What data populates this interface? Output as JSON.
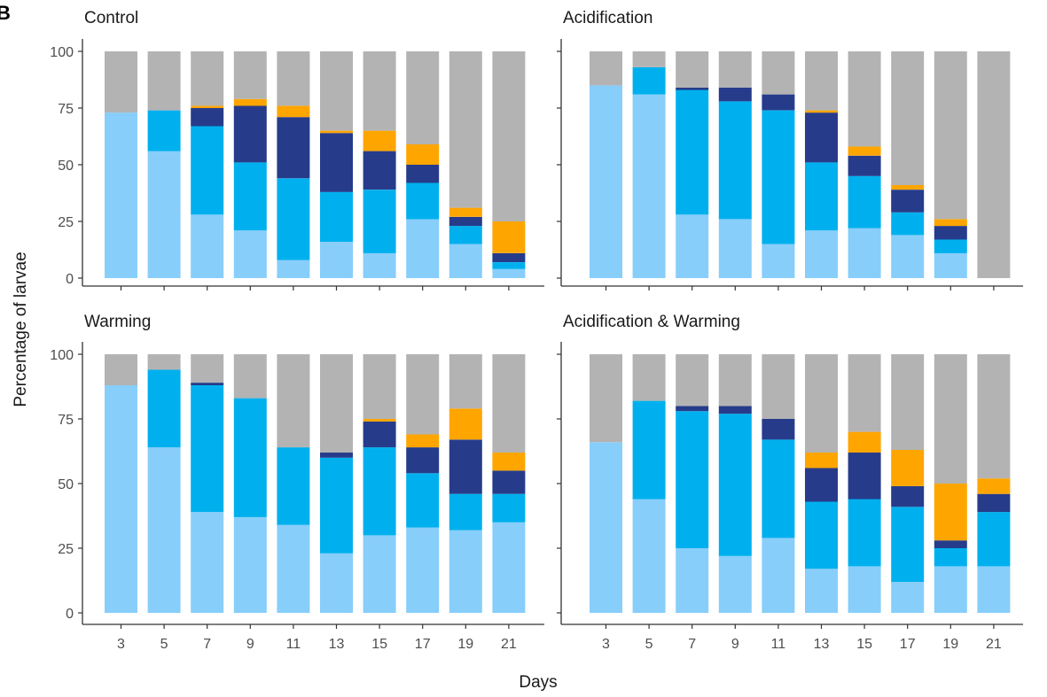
{
  "figure_tag": "B",
  "colors": {
    "stage1": "#87CEFA",
    "stage2": "#00B0EE",
    "stage3": "#263C8B",
    "stage4": "#FFA500",
    "dead": "#B3B3B3"
  },
  "chart_data": [
    {
      "type": "bar",
      "stacked": true,
      "title": "Control",
      "x": [
        3,
        5,
        7,
        9,
        11,
        13,
        15,
        17,
        19,
        21
      ],
      "ylim": [
        0,
        100
      ],
      "yticks": [
        0,
        25,
        50,
        75,
        100
      ],
      "xlabel": "Days",
      "ylabel": "Percentage of larvae",
      "series": [
        {
          "color": "#87CEFA",
          "values": [
            73,
            56,
            28,
            21,
            8,
            16,
            11,
            26,
            15,
            4
          ]
        },
        {
          "color": "#00B0EE",
          "values": [
            0,
            18,
            39,
            30,
            36,
            22,
            28,
            16,
            8,
            3
          ]
        },
        {
          "color": "#263C8B",
          "values": [
            0,
            0,
            8,
            25,
            27,
            26,
            17,
            8,
            4,
            4
          ]
        },
        {
          "color": "#FFA500",
          "values": [
            0,
            0,
            1,
            3,
            5,
            1,
            9,
            9,
            4,
            14
          ]
        },
        {
          "color": "#B3B3B3",
          "values": [
            27,
            26,
            24,
            21,
            24,
            35,
            35,
            41,
            69,
            75
          ]
        }
      ]
    },
    {
      "type": "bar",
      "stacked": true,
      "title": "Acidification",
      "x": [
        3,
        5,
        7,
        9,
        11,
        13,
        15,
        17,
        19,
        21
      ],
      "ylim": [
        0,
        100
      ],
      "yticks": [
        0,
        25,
        50,
        75,
        100
      ],
      "xlabel": "Days",
      "ylabel": "Percentage of larvae",
      "series": [
        {
          "color": "#87CEFA",
          "values": [
            85,
            81,
            28,
            26,
            15,
            21,
            22,
            19,
            11,
            0
          ]
        },
        {
          "color": "#00B0EE",
          "values": [
            0,
            12,
            55,
            52,
            59,
            30,
            23,
            10,
            6,
            0
          ]
        },
        {
          "color": "#263C8B",
          "values": [
            0,
            0,
            1,
            6,
            7,
            22,
            9,
            10,
            6,
            0
          ]
        },
        {
          "color": "#FFA500",
          "values": [
            0,
            0,
            0,
            0,
            0,
            1,
            4,
            2,
            3,
            0
          ]
        },
        {
          "color": "#B3B3B3",
          "values": [
            15,
            7,
            16,
            16,
            19,
            26,
            42,
            59,
            74,
            100
          ]
        }
      ]
    },
    {
      "type": "bar",
      "stacked": true,
      "title": "Warming",
      "x": [
        3,
        5,
        7,
        9,
        11,
        13,
        15,
        17,
        19,
        21
      ],
      "ylim": [
        0,
        100
      ],
      "yticks": [
        0,
        25,
        50,
        75,
        100
      ],
      "xlabel": "Days",
      "ylabel": "Percentage of larvae",
      "series": [
        {
          "color": "#87CEFA",
          "values": [
            88,
            64,
            39,
            37,
            34,
            23,
            30,
            33,
            32,
            35
          ]
        },
        {
          "color": "#00B0EE",
          "values": [
            0,
            30,
            49,
            46,
            30,
            37,
            34,
            21,
            14,
            11
          ]
        },
        {
          "color": "#263C8B",
          "values": [
            0,
            0,
            1,
            0,
            0,
            2,
            10,
            10,
            21,
            9
          ]
        },
        {
          "color": "#FFA500",
          "values": [
            0,
            0,
            0,
            0,
            0,
            0,
            1,
            5,
            12,
            7
          ]
        },
        {
          "color": "#B3B3B3",
          "values": [
            12,
            6,
            11,
            17,
            36,
            38,
            25,
            31,
            21,
            38
          ]
        }
      ]
    },
    {
      "type": "bar",
      "stacked": true,
      "title": "Acidification & Warming",
      "x": [
        3,
        5,
        7,
        9,
        11,
        13,
        15,
        17,
        19,
        21
      ],
      "ylim": [
        0,
        100
      ],
      "yticks": [
        0,
        25,
        50,
        75,
        100
      ],
      "xlabel": "Days",
      "ylabel": "Percentage of larvae",
      "series": [
        {
          "color": "#87CEFA",
          "values": [
            66,
            44,
            25,
            22,
            29,
            17,
            18,
            12,
            18,
            18
          ]
        },
        {
          "color": "#00B0EE",
          "values": [
            0,
            38,
            53,
            55,
            38,
            26,
            26,
            29,
            7,
            21
          ]
        },
        {
          "color": "#263C8B",
          "values": [
            0,
            0,
            2,
            3,
            8,
            13,
            18,
            8,
            3,
            7
          ]
        },
        {
          "color": "#FFA500",
          "values": [
            0,
            0,
            0,
            0,
            0,
            6,
            8,
            14,
            22,
            6
          ]
        },
        {
          "color": "#B3B3B3",
          "values": [
            34,
            18,
            20,
            20,
            25,
            38,
            30,
            37,
            50,
            48
          ]
        }
      ]
    }
  ]
}
